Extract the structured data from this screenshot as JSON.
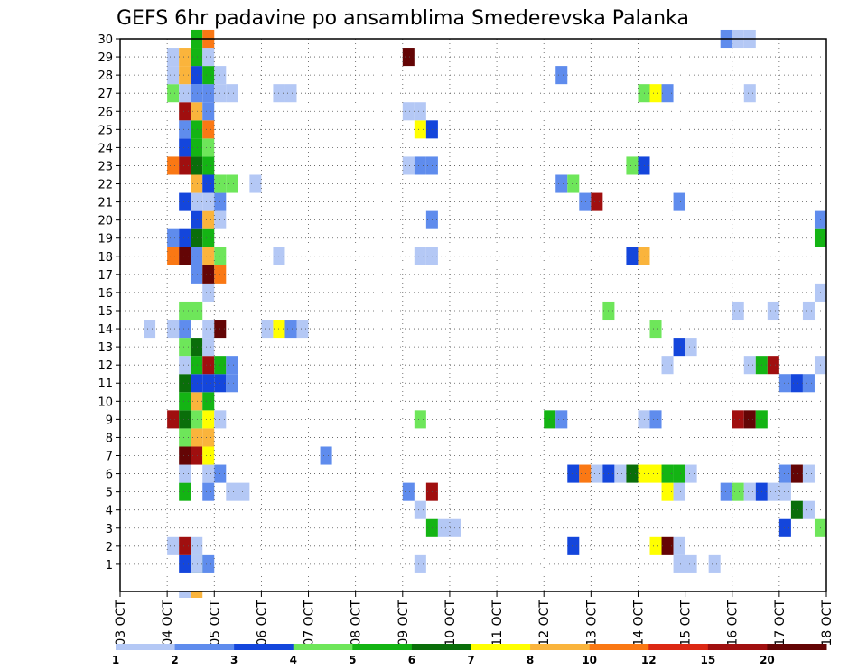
{
  "chart_data": {
    "type": "heatmap",
    "title": "GEFS 6hr padavine po ansamblima Smederevska Palanka",
    "x_ticks": [
      "03 OCT",
      "04 OCT",
      "05 OCT",
      "06 OCT",
      "07 OCT",
      "08 OCT",
      "09 OCT",
      "10 OCT",
      "11 OCT",
      "12 OCT",
      "13 OCT",
      "14 OCT",
      "15 OCT",
      "16 OCT",
      "17 OCT",
      "18 OCT"
    ],
    "y_ticks": [
      "1",
      "2",
      "3",
      "4",
      "5",
      "6",
      "7",
      "8",
      "9",
      "10",
      "11",
      "12",
      "13",
      "14",
      "15",
      "16",
      "17",
      "18",
      "19",
      "20",
      "21",
      "22",
      "23",
      "24",
      "25",
      "26",
      "27",
      "28",
      "29",
      "30"
    ],
    "grid": true,
    "colorbar": {
      "labels": [
        "1",
        "2",
        "3",
        "4",
        "5",
        "6",
        "7",
        "8",
        "10",
        "12",
        "15",
        "20"
      ],
      "colors": [
        "#b4c8f5",
        "#5f8ced",
        "#1446dc",
        "#6ee65a",
        "#14b414",
        "#0a6e0a",
        "#ffff00",
        "#fab43c",
        "#fa7814",
        "#dc2814",
        "#a00f0f",
        "#640505"
      ]
    },
    "cells": [
      [
        1,
        4.25,
        3
      ],
      [
        1,
        4.5,
        5
      ],
      [
        1,
        4.75,
        2
      ],
      [
        1,
        9.25,
        1
      ],
      [
        1,
        14.75,
        1
      ],
      [
        1,
        15,
        1
      ],
      [
        1,
        15.5,
        1
      ],
      [
        1,
        4.5,
        1
      ],
      [
        2,
        4,
        1
      ],
      [
        2,
        4.25,
        11
      ],
      [
        2,
        4.5,
        1
      ],
      [
        2,
        12.5,
        3
      ],
      [
        2,
        14.25,
        7
      ],
      [
        2,
        14.5,
        12
      ],
      [
        2,
        14.75,
        1
      ],
      [
        3,
        9.5,
        5
      ],
      [
        3,
        9.75,
        1
      ],
      [
        3,
        10,
        1
      ],
      [
        3,
        17,
        3
      ],
      [
        3,
        17.75,
        4
      ],
      [
        4,
        9.25,
        1
      ],
      [
        4,
        17.25,
        6
      ],
      [
        4,
        17.5,
        1
      ],
      [
        5,
        4.25,
        5
      ],
      [
        5,
        4.75,
        2
      ],
      [
        5,
        5.25,
        1
      ],
      [
        5,
        5.5,
        1
      ],
      [
        5,
        9,
        2
      ],
      [
        5,
        9.5,
        11
      ],
      [
        5,
        14.5,
        7
      ],
      [
        5,
        14.75,
        1
      ],
      [
        5,
        15.75,
        2
      ],
      [
        5,
        16,
        4
      ],
      [
        5,
        16.25,
        1
      ],
      [
        5,
        16.5,
        3
      ],
      [
        5,
        16.75,
        1
      ],
      [
        5,
        17,
        1
      ],
      [
        6,
        4.25,
        1
      ],
      [
        6,
        4.75,
        1
      ],
      [
        6,
        5,
        2
      ],
      [
        6,
        12.5,
        3
      ],
      [
        6,
        12.75,
        9
      ],
      [
        6,
        13,
        1
      ],
      [
        6,
        13.25,
        3
      ],
      [
        6,
        13.5,
        1
      ],
      [
        6,
        13.75,
        6
      ],
      [
        6,
        14,
        7
      ],
      [
        6,
        14.25,
        7
      ],
      [
        6,
        14.5,
        5
      ],
      [
        6,
        14.75,
        5
      ],
      [
        6,
        15,
        1
      ],
      [
        6,
        17,
        2
      ],
      [
        6,
        17.25,
        12
      ],
      [
        6,
        17.5,
        1
      ],
      [
        7,
        4.25,
        12
      ],
      [
        7,
        4.5,
        11
      ],
      [
        7,
        4.75,
        7
      ],
      [
        7,
        7.25,
        2
      ],
      [
        8,
        4.25,
        4
      ],
      [
        8,
        4.5,
        8
      ],
      [
        8,
        4.75,
        8
      ],
      [
        9,
        4,
        11
      ],
      [
        9,
        4.25,
        6
      ],
      [
        9,
        4.5,
        4
      ],
      [
        9,
        4.75,
        7
      ],
      [
        9,
        5,
        1
      ],
      [
        9,
        9.25,
        4
      ],
      [
        9,
        12,
        5
      ],
      [
        9,
        12.25,
        2
      ],
      [
        9,
        14,
        1
      ],
      [
        9,
        14.25,
        2
      ],
      [
        9,
        16,
        11
      ],
      [
        9,
        16.25,
        12
      ],
      [
        9,
        16.5,
        5
      ],
      [
        10,
        4.25,
        5
      ],
      [
        10,
        4.5,
        8
      ],
      [
        10,
        4.75,
        5
      ],
      [
        11,
        4.25,
        6
      ],
      [
        11,
        4.5,
        3
      ],
      [
        11,
        4.75,
        3
      ],
      [
        11,
        5,
        3
      ],
      [
        11,
        5.25,
        2
      ],
      [
        11,
        17,
        2
      ],
      [
        11,
        17.25,
        3
      ],
      [
        11,
        17.5,
        2
      ],
      [
        12,
        4.25,
        1
      ],
      [
        12,
        4.5,
        5
      ],
      [
        12,
        4.75,
        11
      ],
      [
        12,
        5,
        5
      ],
      [
        12,
        5.25,
        2
      ],
      [
        12,
        14.5,
        1
      ],
      [
        12,
        16.25,
        1
      ],
      [
        12,
        16.5,
        5
      ],
      [
        12,
        16.75,
        11
      ],
      [
        12,
        17.75,
        1
      ],
      [
        13,
        4.25,
        4
      ],
      [
        13,
        4.5,
        6
      ],
      [
        13,
        4.75,
        1
      ],
      [
        13,
        14.75,
        3
      ],
      [
        13,
        15,
        1
      ],
      [
        14,
        3.5,
        1
      ],
      [
        14,
        4,
        1
      ],
      [
        14,
        4.25,
        2
      ],
      [
        14,
        4.75,
        1
      ],
      [
        14,
        5,
        12
      ],
      [
        14,
        6,
        1
      ],
      [
        14,
        6.25,
        7
      ],
      [
        14,
        6.5,
        2
      ],
      [
        14,
        6.75,
        1
      ],
      [
        14,
        14.25,
        4
      ],
      [
        15,
        4.25,
        4
      ],
      [
        15,
        4.5,
        4
      ],
      [
        15,
        13.25,
        4
      ],
      [
        15,
        16,
        1
      ],
      [
        15,
        16.75,
        1
      ],
      [
        15,
        17.5,
        1
      ],
      [
        16,
        4.75,
        1
      ],
      [
        16,
        17.75,
        1
      ],
      [
        17,
        4.5,
        2
      ],
      [
        17,
        4.75,
        12
      ],
      [
        17,
        5,
        9
      ],
      [
        18,
        4,
        9
      ],
      [
        18,
        4.25,
        12
      ],
      [
        18,
        4.5,
        2
      ],
      [
        18,
        4.75,
        8
      ],
      [
        18,
        5,
        4
      ],
      [
        18,
        6.25,
        1
      ],
      [
        18,
        9.25,
        1
      ],
      [
        18,
        9.5,
        1
      ],
      [
        18,
        13.75,
        3
      ],
      [
        18,
        14,
        8
      ],
      [
        19,
        4,
        2
      ],
      [
        19,
        4.25,
        3
      ],
      [
        19,
        4.5,
        6
      ],
      [
        19,
        4.75,
        5
      ],
      [
        19,
        17.75,
        5
      ],
      [
        20,
        4.5,
        3
      ],
      [
        20,
        4.75,
        8
      ],
      [
        20,
        5,
        1
      ],
      [
        20,
        9.5,
        2
      ],
      [
        20,
        17.75,
        2
      ],
      [
        21,
        4.25,
        3
      ],
      [
        21,
        4.5,
        1
      ],
      [
        21,
        4.75,
        1
      ],
      [
        21,
        5,
        2
      ],
      [
        21,
        12.75,
        2
      ],
      [
        21,
        13,
        11
      ],
      [
        21,
        14.75,
        2
      ],
      [
        22,
        4.5,
        8
      ],
      [
        22,
        4.75,
        3
      ],
      [
        22,
        5,
        4
      ],
      [
        22,
        5.25,
        4
      ],
      [
        22,
        5.75,
        1
      ],
      [
        22,
        12.25,
        2
      ],
      [
        22,
        12.5,
        4
      ],
      [
        23,
        4,
        9
      ],
      [
        23,
        4.25,
        11
      ],
      [
        23,
        4.5,
        6
      ],
      [
        23,
        4.75,
        5
      ],
      [
        23,
        9,
        1
      ],
      [
        23,
        9.25,
        2
      ],
      [
        23,
        9.5,
        2
      ],
      [
        23,
        13.75,
        4
      ],
      [
        23,
        14,
        3
      ],
      [
        24,
        4.25,
        3
      ],
      [
        24,
        4.5,
        5
      ],
      [
        24,
        4.75,
        4
      ],
      [
        25,
        4.25,
        2
      ],
      [
        25,
        4.5,
        5
      ],
      [
        25,
        4.75,
        9
      ],
      [
        25,
        9.25,
        7
      ],
      [
        25,
        9.5,
        3
      ],
      [
        26,
        4.25,
        11
      ],
      [
        26,
        4.5,
        8
      ],
      [
        26,
        4.75,
        2
      ],
      [
        26,
        9,
        1
      ],
      [
        26,
        9.25,
        1
      ],
      [
        27,
        4,
        4
      ],
      [
        27,
        4.25,
        1
      ],
      [
        27,
        4.5,
        2
      ],
      [
        27,
        4.75,
        2
      ],
      [
        27,
        5,
        1
      ],
      [
        27,
        5.25,
        1
      ],
      [
        27,
        6.25,
        1
      ],
      [
        27,
        6.5,
        1
      ],
      [
        27,
        14,
        4
      ],
      [
        27,
        14.25,
        7
      ],
      [
        27,
        14.5,
        2
      ],
      [
        27,
        16.25,
        1
      ],
      [
        28,
        4,
        1
      ],
      [
        28,
        4.25,
        8
      ],
      [
        28,
        4.5,
        3
      ],
      [
        28,
        4.75,
        5
      ],
      [
        28,
        5,
        1
      ],
      [
        28,
        12.25,
        2
      ],
      [
        29,
        4,
        1
      ],
      [
        29,
        4.25,
        8
      ],
      [
        29,
        4.5,
        5
      ],
      [
        29,
        4.75,
        1
      ],
      [
        29,
        9,
        12
      ],
      [
        30,
        4.5,
        5
      ],
      [
        30,
        4.75,
        9
      ],
      [
        30,
        15.75,
        2
      ],
      [
        30,
        16,
        1
      ],
      [
        30,
        16.25,
        1
      ]
    ],
    "extra_cells_below_axis": [
      [
        4.5,
        8
      ],
      [
        4.25,
        1
      ]
    ]
  }
}
